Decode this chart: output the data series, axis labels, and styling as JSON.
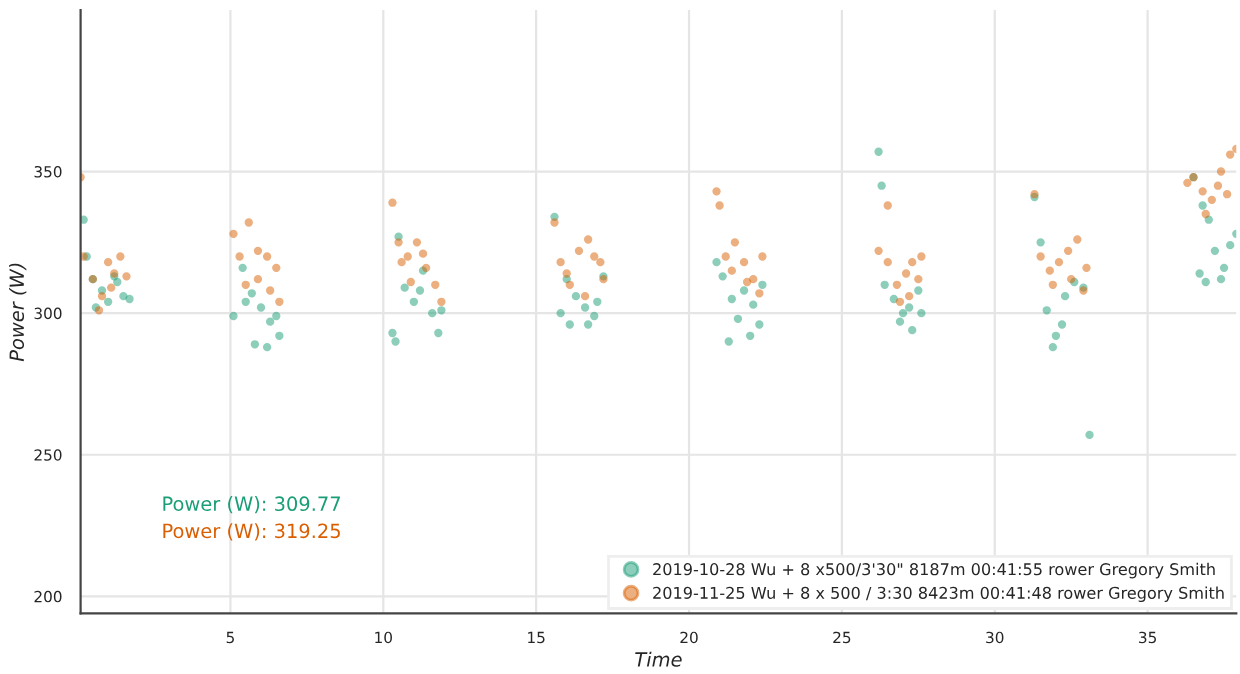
{
  "chart_data": {
    "type": "scatter",
    "xlabel": "Time",
    "ylabel": "Power (W)",
    "xlim": [
      0.1,
      37.9
    ],
    "ylim": [
      194,
      407
    ],
    "xticks": [
      5,
      10,
      15,
      20,
      25,
      30,
      35
    ],
    "yticks": [
      200,
      250,
      300,
      350
    ],
    "grid": true,
    "legend": "bottom right",
    "marker": "circle",
    "annotations": [
      "Power (W): 309.77",
      "Power (W): 319.25"
    ],
    "series": [
      {
        "name": "2019-10-28 Wu + 8 x500/3'30\" 8187m 00:41:55 rower Gregory Smith",
        "color": "#1b9e77",
        "x": [
          0.2,
          0.3,
          0.5,
          0.8,
          1.0,
          1.3,
          1.5,
          0.6,
          1.2,
          1.7,
          5.1,
          5.4,
          5.7,
          6.0,
          6.3,
          6.5,
          5.8,
          6.2,
          5.5,
          6.6,
          10.3,
          10.5,
          10.7,
          11.0,
          11.3,
          11.6,
          11.9,
          10.4,
          11.8,
          11.2,
          15.6,
          15.8,
          16.0,
          16.3,
          16.6,
          16.9,
          17.2,
          16.1,
          16.7,
          17.0,
          20.9,
          21.1,
          21.4,
          21.6,
          21.8,
          22.1,
          22.3,
          21.3,
          22.0,
          22.4,
          26.2,
          26.3,
          26.4,
          26.7,
          27.0,
          27.2,
          27.5,
          27.6,
          26.9,
          27.3,
          31.3,
          31.5,
          31.7,
          32.0,
          32.3,
          32.6,
          32.9,
          32.2,
          31.9,
          33.1,
          36.5,
          36.8,
          37.0,
          37.2,
          37.5,
          37.7,
          36.7,
          36.9,
          37.4,
          37.9
        ],
        "values": [
          333,
          320,
          312,
          308,
          304,
          311,
          306,
          302,
          313,
          305,
          299,
          316,
          307,
          302,
          297,
          299,
          289,
          288,
          304,
          292,
          293,
          327,
          309,
          304,
          315,
          300,
          301,
          290,
          293,
          308,
          334,
          300,
          312,
          306,
          302,
          299,
          313,
          296,
          296,
          304,
          318,
          313,
          305,
          298,
          308,
          303,
          296,
          290,
          292,
          310,
          357,
          345,
          310,
          305,
          300,
          302,
          308,
          300,
          297,
          294,
          341,
          325,
          301,
          292,
          306,
          311,
          309,
          296,
          288,
          257,
          348,
          338,
          333,
          322,
          316,
          324,
          314,
          311,
          312,
          328
        ]
      },
      {
        "name": "2019-11-25 Wu + 8 x 500 / 3:30 8423m 00:41:48 rower Gregory Smith",
        "color": "#d95f02",
        "x": [
          0.1,
          0.2,
          0.5,
          0.8,
          1.0,
          1.2,
          1.4,
          1.6,
          0.7,
          1.1,
          5.1,
          5.3,
          5.6,
          5.9,
          6.2,
          6.5,
          5.5,
          5.9,
          6.3,
          6.6,
          10.3,
          10.5,
          10.8,
          11.1,
          11.4,
          11.7,
          11.9,
          10.9,
          11.3,
          10.6,
          15.6,
          15.8,
          16.1,
          16.4,
          16.7,
          16.9,
          17.2,
          16.0,
          16.6,
          17.1,
          20.9,
          21.0,
          21.2,
          21.5,
          21.8,
          22.1,
          22.4,
          21.4,
          21.9,
          22.3,
          26.5,
          26.2,
          26.5,
          26.8,
          27.1,
          27.3,
          27.6,
          26.9,
          27.2,
          27.5,
          31.3,
          31.5,
          31.8,
          32.1,
          32.4,
          32.7,
          33.0,
          31.9,
          32.5,
          32.9,
          36.3,
          36.5,
          36.8,
          37.1,
          37.4,
          37.7,
          37.9,
          36.9,
          37.3,
          37.6
        ],
        "values": [
          348,
          320,
          312,
          306,
          318,
          314,
          320,
          313,
          301,
          309,
          328,
          320,
          332,
          322,
          320,
          316,
          310,
          312,
          308,
          304,
          339,
          325,
          320,
          325,
          316,
          310,
          304,
          311,
          321,
          318,
          332,
          318,
          310,
          322,
          326,
          320,
          312,
          314,
          306,
          318,
          343,
          338,
          320,
          325,
          318,
          312,
          320,
          315,
          311,
          307,
          338,
          322,
          318,
          310,
          314,
          318,
          320,
          304,
          306,
          312,
          342,
          320,
          315,
          318,
          322,
          326,
          316,
          310,
          312,
          308,
          346,
          348,
          343,
          340,
          350,
          356,
          358,
          335,
          345,
          342
        ]
      }
    ]
  }
}
